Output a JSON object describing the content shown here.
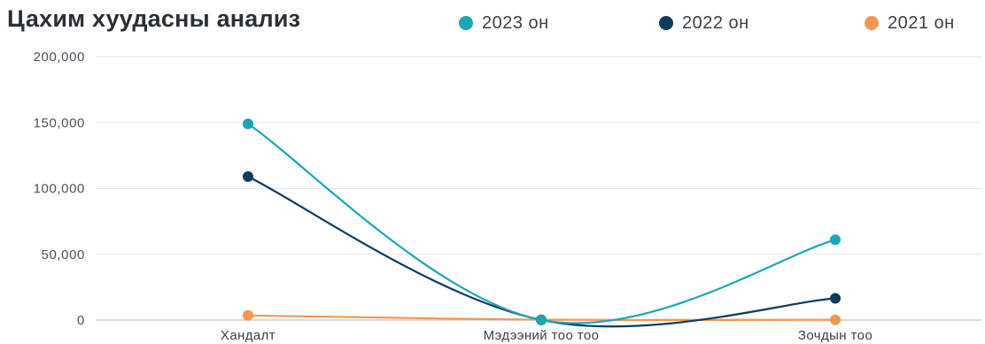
{
  "chart_data": {
    "type": "line",
    "title": "Цахим хуудасны анализ",
    "xlabel": "",
    "ylabel": "",
    "categories": [
      "Хандалт",
      "Мэдээний тоо тоо",
      "Зочдын тоо"
    ],
    "ylim": [
      0,
      200000
    ],
    "yticks": [
      0,
      50000,
      100000,
      150000,
      200000
    ],
    "ytick_labels": [
      "0",
      "50,000",
      "100,000",
      "150,000",
      "200,000"
    ],
    "grid": true,
    "legend_position": "top-right",
    "series": [
      {
        "name": "2023 он",
        "color": "#1aa6b4",
        "values": [
          149000,
          100,
          61000
        ]
      },
      {
        "name": "2022 он",
        "color": "#0f3a5c",
        "values": [
          109000,
          100,
          16500
        ]
      },
      {
        "name": "2021 он",
        "color": "#f5964f",
        "values": [
          3500,
          300,
          200
        ]
      }
    ]
  }
}
